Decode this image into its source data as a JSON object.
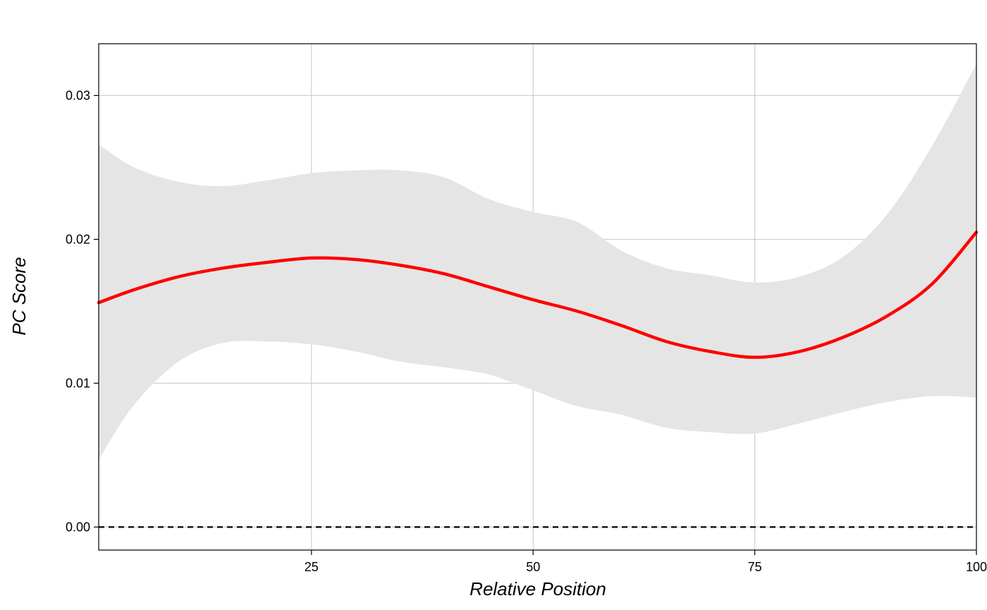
{
  "chart_data": {
    "type": "line",
    "xlabel": "Relative Position",
    "ylabel": "PC Score",
    "xlim": [
      1,
      100
    ],
    "ylim": [
      -0.0016,
      0.0336
    ],
    "x_ticks": [
      25,
      50,
      75,
      100
    ],
    "x_tick_labels": [
      "25",
      "50",
      "75",
      "100"
    ],
    "y_ticks": [
      0.0,
      0.01,
      0.02,
      0.03
    ],
    "y_tick_labels": [
      "0.00",
      "0.01",
      "0.02",
      "0.03"
    ],
    "grid": true,
    "reference_line": {
      "y": 0,
      "style": "dashed"
    },
    "series": [
      {
        "kind": "smooth-line-with-ribbon",
        "x": [
          1,
          5,
          10,
          15,
          20,
          25,
          30,
          35,
          40,
          45,
          50,
          55,
          60,
          65,
          70,
          75,
          80,
          85,
          90,
          95,
          100
        ],
        "y": [
          0.0156,
          0.0165,
          0.0174,
          0.018,
          0.0184,
          0.0187,
          0.0186,
          0.0182,
          0.0176,
          0.0167,
          0.0158,
          0.015,
          0.014,
          0.0129,
          0.0122,
          0.0118,
          0.0122,
          0.0132,
          0.0147,
          0.0169,
          0.0205
        ],
        "upper": [
          0.0266,
          0.025,
          0.024,
          0.0237,
          0.0241,
          0.0246,
          0.0248,
          0.0248,
          0.0243,
          0.0228,
          0.0219,
          0.0212,
          0.0192,
          0.018,
          0.0175,
          0.017,
          0.0174,
          0.0188,
          0.0218,
          0.0265,
          0.0322
        ],
        "lower": [
          0.0047,
          0.0085,
          0.0115,
          0.0128,
          0.0129,
          0.0127,
          0.0122,
          0.0115,
          0.0111,
          0.0106,
          0.0095,
          0.0084,
          0.0078,
          0.0069,
          0.0066,
          0.0065,
          0.0072,
          0.008,
          0.0087,
          0.0091,
          0.009
        ]
      }
    ]
  },
  "colors": {
    "line": "#ff0000",
    "ribbon": "#e5e5e5",
    "grid": "#c6c6c6",
    "axis": "#000000",
    "reference_line": "#000000"
  }
}
